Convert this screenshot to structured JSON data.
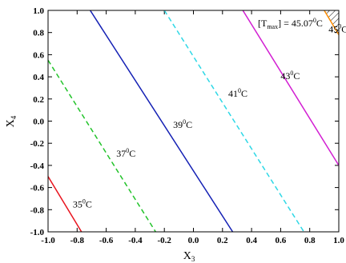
{
  "chart_data": {
    "type": "contour",
    "xlabel": {
      "main": "X",
      "sub": "3"
    },
    "ylabel": {
      "main": "X",
      "sub": "4"
    },
    "xlim": [
      -1.0,
      1.0
    ],
    "ylim": [
      -1.0,
      1.0
    ],
    "x_ticks": [
      "-1.0",
      "-0.8",
      "-0.6",
      "-0.4",
      "-0.2",
      "0.0",
      "0.2",
      "0.4",
      "0.6",
      "0.8",
      "1.0"
    ],
    "y_ticks": [
      "1.0",
      "0.8",
      "0.6",
      "0.4",
      "0.2",
      "0.0",
      "-0.2",
      "-0.4",
      "-0.6",
      "-0.8",
      "-1.0"
    ],
    "grid": false,
    "contours": [
      {
        "label_value": "35",
        "label_unit": "C",
        "color": "#e8141e",
        "dash": "solid",
        "points": [
          [
            -1.0,
            -0.5
          ],
          [
            -0.77,
            -1.0
          ]
        ]
      },
      {
        "label_value": "37",
        "label_unit": "C",
        "color": "#22c32a",
        "dash": "dashed",
        "points": [
          [
            -1.0,
            0.55
          ],
          [
            -0.26,
            -1.0
          ]
        ]
      },
      {
        "label_value": "39",
        "label_unit": "C",
        "color": "#1420b4",
        "dash": "solid",
        "points": [
          [
            -0.71,
            1.0
          ],
          [
            0.27,
            -1.0
          ]
        ]
      },
      {
        "label_value": "41",
        "label_unit": "C",
        "color": "#2ed8e6",
        "dash": "dashed",
        "points": [
          [
            -0.2,
            1.0
          ],
          [
            0.76,
            -1.0
          ]
        ]
      },
      {
        "label_value": "43",
        "label_unit": "C",
        "color": "#d21ed2",
        "dash": "solid",
        "points": [
          [
            0.34,
            1.0
          ],
          [
            1.0,
            -0.4
          ]
        ]
      },
      {
        "label_value": "45",
        "label_unit": "C",
        "color": "#ff8c00",
        "dash": "solid",
        "points": [
          [
            0.9,
            1.0
          ],
          [
            1.0,
            0.78
          ]
        ]
      }
    ],
    "contour_labels": [
      {
        "value": "35",
        "at": [
          -0.83,
          -0.78
        ]
      },
      {
        "value": "37",
        "at": [
          -0.53,
          -0.32
        ]
      },
      {
        "value": "39",
        "at": [
          -0.14,
          -0.06
        ]
      },
      {
        "value": "41",
        "at": [
          0.24,
          0.22
        ]
      },
      {
        "value": "43",
        "at": [
          0.6,
          0.38
        ]
      },
      {
        "value": "45",
        "at": [
          0.93,
          0.8
        ]
      }
    ],
    "max_annotation": {
      "prefix": "[T",
      "sub": "max",
      "suffix": "] = 45.07",
      "unit": "C"
    }
  }
}
